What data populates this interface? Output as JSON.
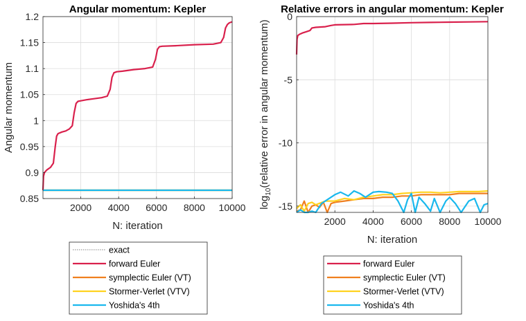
{
  "chart_data": [
    {
      "type": "line",
      "title": "Angular momentum: Kepler",
      "xlabel": "N: iteration",
      "ylabel": "Angular momentum",
      "xlim": [
        0,
        10000
      ],
      "ylim": [
        0.85,
        1.2
      ],
      "grid": true,
      "xticks": [
        2000,
        4000,
        6000,
        8000,
        10000
      ],
      "xtick_labels": [
        "2000",
        "4000",
        "6000",
        "8000",
        "10000"
      ],
      "yticks": [
        0.85,
        0.9,
        0.95,
        1,
        1.05,
        1.1,
        1.15,
        1.2
      ],
      "ytick_labels": [
        "0.85",
        "0.9",
        "0.95",
        "1",
        "1.05",
        "1.1",
        "1.15",
        "1.2"
      ],
      "legend_placement": "below",
      "series": [
        {
          "name": "exact",
          "color": "#808080",
          "style": "dotted",
          "x": [
            0,
            10000
          ],
          "y": [
            0.866,
            0.866
          ]
        },
        {
          "name": "forward Euler",
          "color": "#d9204c",
          "style": "solid",
          "x": [
            0,
            30,
            80,
            200,
            400,
            550,
            650,
            720,
            800,
            1000,
            1200,
            1400,
            1550,
            1650,
            1750,
            1850,
            2000,
            2300,
            2700,
            3100,
            3400,
            3550,
            3650,
            3750,
            3900,
            4200,
            4800,
            5400,
            5800,
            5950,
            6050,
            6150,
            6300,
            7000,
            8000,
            9000,
            9400,
            9550,
            9650,
            9750,
            9850,
            10000
          ],
          "y": [
            0.866,
            0.893,
            0.9,
            0.905,
            0.91,
            0.918,
            0.95,
            0.97,
            0.975,
            0.978,
            0.98,
            0.984,
            0.99,
            1.015,
            1.033,
            1.037,
            1.038,
            1.04,
            1.042,
            1.044,
            1.047,
            1.06,
            1.083,
            1.092,
            1.094,
            1.095,
            1.098,
            1.1,
            1.103,
            1.118,
            1.137,
            1.142,
            1.143,
            1.144,
            1.146,
            1.147,
            1.15,
            1.16,
            1.178,
            1.185,
            1.188,
            1.19
          ]
        },
        {
          "name": "symplectic Euler (VT)",
          "color": "#f07f1e",
          "style": "solid",
          "x": [
            0,
            10000
          ],
          "y": [
            0.866,
            0.866
          ]
        },
        {
          "name": "Stormer-Verlet (VTV)",
          "color": "#ffd21f",
          "style": "solid",
          "x": [
            0,
            10000
          ],
          "y": [
            0.866,
            0.866
          ]
        },
        {
          "name": "Yoshida's 4th",
          "color": "#19b8ed",
          "style": "solid",
          "x": [
            0,
            10000
          ],
          "y": [
            0.866,
            0.866
          ]
        }
      ]
    },
    {
      "type": "line",
      "title": "Relative errors in angular momentum: Kepler",
      "xlabel": "N: iteration",
      "ylabel_main": "log",
      "ylabel_sub": "10",
      "ylabel_rest": "(relative error in angular momentum)",
      "xlim": [
        0,
        10000
      ],
      "ylim": [
        -15.5,
        0
      ],
      "grid": true,
      "xticks": [
        2000,
        4000,
        6000,
        8000,
        10000
      ],
      "xtick_labels": [
        "2000",
        "4000",
        "6000",
        "8000",
        "10000"
      ],
      "yticks": [
        -15,
        -10,
        -5,
        0
      ],
      "ytick_labels": [
        "-15",
        "-10",
        "-5",
        "0"
      ],
      "legend_placement": "below",
      "series": [
        {
          "name": "forward Euler",
          "color": "#d9204c",
          "style": "solid",
          "x": [
            0,
            20,
            60,
            150,
            300,
            500,
            700,
            800,
            1000,
            1500,
            1800,
            2000,
            3000,
            3500,
            4000,
            5000,
            6000,
            7000,
            8000,
            9000,
            10000
          ],
          "y": [
            -3.0,
            -1.8,
            -1.5,
            -1.4,
            -1.3,
            -1.2,
            -1.1,
            -0.9,
            -0.85,
            -0.8,
            -0.7,
            -0.65,
            -0.62,
            -0.55,
            -0.55,
            -0.52,
            -0.48,
            -0.46,
            -0.44,
            -0.42,
            -0.4
          ]
        },
        {
          "name": "symplectic Euler (VT)",
          "color": "#f07f1e",
          "style": "solid",
          "x": [
            0,
            200,
            400,
            600,
            800,
            1000,
            1200,
            1400,
            1600,
            1800,
            2000,
            2500,
            3000,
            3500,
            4000,
            4500,
            5000,
            5500,
            6000,
            6500,
            7000,
            7500,
            8000,
            8500,
            9000,
            9500,
            10000
          ],
          "y": [
            -15.4,
            -15.3,
            -14.6,
            -15.5,
            -15.0,
            -14.9,
            -15.1,
            -14.7,
            -15.5,
            -14.8,
            -14.7,
            -14.6,
            -14.5,
            -14.4,
            -14.4,
            -14.3,
            -14.3,
            -14.2,
            -14.2,
            -14.1,
            -14.1,
            -14.1,
            -14.1,
            -14.0,
            -14.0,
            -14.0,
            -14.0
          ]
        },
        {
          "name": "Stormer-Verlet (VTV)",
          "color": "#ffd21f",
          "style": "solid",
          "x": [
            0,
            200,
            400,
            600,
            800,
            1000,
            1500,
            2000,
            2500,
            3000,
            3500,
            4000,
            4500,
            5000,
            5500,
            6000,
            6500,
            7000,
            7500,
            8000,
            8500,
            9000,
            9500,
            10000
          ],
          "y": [
            -15.2,
            -14.9,
            -15.4,
            -14.8,
            -14.7,
            -14.9,
            -14.6,
            -14.6,
            -14.4,
            -14.5,
            -14.3,
            -14.2,
            -14.1,
            -14.1,
            -14.0,
            -13.95,
            -13.9,
            -13.9,
            -13.95,
            -13.9,
            -13.85,
            -13.85,
            -13.85,
            -13.8
          ]
        },
        {
          "name": "Yoshida's 4th",
          "color": "#19b8ed",
          "style": "solid",
          "x": [
            0,
            200,
            400,
            600,
            800,
            1000,
            1300,
            1600,
            2000,
            2300,
            2700,
            3000,
            3300,
            3600,
            4000,
            4300,
            4700,
            5000,
            5300,
            5600,
            5800,
            6000,
            6200,
            6400,
            6700,
            7000,
            7200,
            7500,
            7800,
            8000,
            8300,
            8600,
            9000,
            9300,
            9600,
            9800,
            10000
          ],
          "y": [
            -15.5,
            -15.3,
            -15.5,
            -15.5,
            -15.4,
            -15.5,
            -14.8,
            -14.5,
            -14.1,
            -13.9,
            -14.2,
            -13.8,
            -14.0,
            -14.3,
            -13.9,
            -13.85,
            -13.9,
            -14.0,
            -14.6,
            -15.5,
            -14.5,
            -14.0,
            -15.5,
            -14.3,
            -14.8,
            -15.4,
            -14.4,
            -15.5,
            -14.6,
            -14.3,
            -14.8,
            -15.5,
            -14.6,
            -14.4,
            -15.5,
            -14.9,
            -14.8
          ]
        }
      ]
    }
  ],
  "legends": [
    {
      "entries": [
        "exact",
        "forward Euler",
        "symplectic Euler (VT)",
        "Stormer-Verlet (VTV)",
        "Yoshida's 4th"
      ]
    },
    {
      "entries": [
        "forward Euler",
        "symplectic Euler (VT)",
        "Stormer-Verlet (VTV)",
        "Yoshida's 4th"
      ]
    }
  ]
}
